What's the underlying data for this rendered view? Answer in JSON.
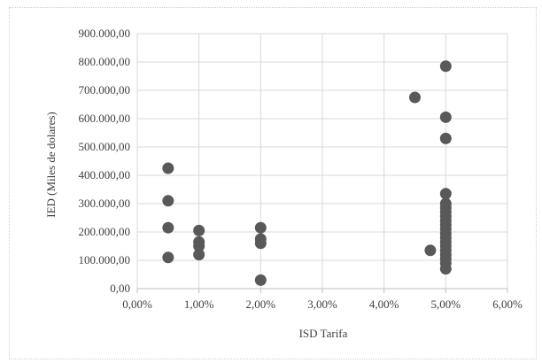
{
  "chart_data": {
    "type": "scatter",
    "title": "",
    "xlabel": "ISD Tarifa",
    "ylabel": "IED (Miles de dolares)",
    "xlim": [
      0,
      0.06
    ],
    "ylim": [
      0,
      900000
    ],
    "grid": true,
    "legend": "none",
    "x_tick_labels": [
      "0,00%",
      "1,00%",
      "2,00%",
      "3,00%",
      "4,00%",
      "5,00%",
      "6,00%"
    ],
    "y_tick_labels": [
      "0,00",
      "100.000,00",
      "200.000,00",
      "300.000,00",
      "400.000,00",
      "500.000,00",
      "600.000,00",
      "700.000,00",
      "800.000,00",
      "900.000,00"
    ],
    "marker_color": "#595959",
    "points": [
      {
        "x": 0.005,
        "y": 425000
      },
      {
        "x": 0.005,
        "y": 310000
      },
      {
        "x": 0.005,
        "y": 215000
      },
      {
        "x": 0.005,
        "y": 110000
      },
      {
        "x": 0.01,
        "y": 205000
      },
      {
        "x": 0.01,
        "y": 165000
      },
      {
        "x": 0.01,
        "y": 150000
      },
      {
        "x": 0.01,
        "y": 120000
      },
      {
        "x": 0.02,
        "y": 215000
      },
      {
        "x": 0.02,
        "y": 175000
      },
      {
        "x": 0.02,
        "y": 160000
      },
      {
        "x": 0.02,
        "y": 30000
      },
      {
        "x": 0.045,
        "y": 675000
      },
      {
        "x": 0.0475,
        "y": 135000
      },
      {
        "x": 0.05,
        "y": 785000
      },
      {
        "x": 0.05,
        "y": 605000
      },
      {
        "x": 0.05,
        "y": 530000
      },
      {
        "x": 0.05,
        "y": 335000
      },
      {
        "x": 0.05,
        "y": 300000
      },
      {
        "x": 0.05,
        "y": 285000
      },
      {
        "x": 0.05,
        "y": 270000
      },
      {
        "x": 0.05,
        "y": 255000
      },
      {
        "x": 0.05,
        "y": 240000
      },
      {
        "x": 0.05,
        "y": 225000
      },
      {
        "x": 0.05,
        "y": 210000
      },
      {
        "x": 0.05,
        "y": 195000
      },
      {
        "x": 0.05,
        "y": 180000
      },
      {
        "x": 0.05,
        "y": 165000
      },
      {
        "x": 0.05,
        "y": 150000
      },
      {
        "x": 0.05,
        "y": 135000
      },
      {
        "x": 0.05,
        "y": 120000
      },
      {
        "x": 0.05,
        "y": 105000
      },
      {
        "x": 0.05,
        "y": 90000
      },
      {
        "x": 0.05,
        "y": 70000
      }
    ]
  }
}
